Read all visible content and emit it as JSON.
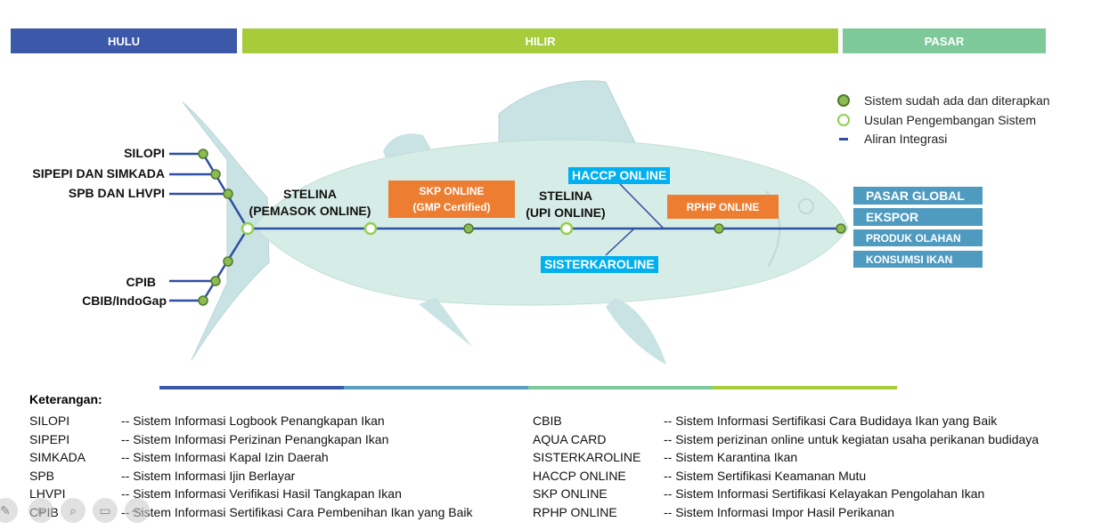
{
  "header": {
    "hulu": "HULU",
    "hilir": "HILIR",
    "pasar": "PASAR"
  },
  "colors": {
    "hulu": "#3c58a8",
    "hilir": "#a6cc3c",
    "pasar": "#7dc99a",
    "line": "#2f4fa2",
    "node_fill": "#8cbb53",
    "fish": "#d6ece6",
    "orange": "#ed7d31",
    "cyan": "#00b0f0",
    "market": "#4f9bc0"
  },
  "tail_labels": {
    "silopi": "SILOPI",
    "sipepi": "SIPEPI  DAN SIMKADA",
    "spb": "SPB DAN LHVPI",
    "cpib": "CPIB",
    "cbib": "CBIB/IndoGap"
  },
  "flow": {
    "stelina_pemasok_1": "STELINA",
    "stelina_pemasok_2": "(PEMASOK ONLINE)",
    "skp_1": "SKP ONLINE",
    "skp_2": "(GMP Certified)",
    "stelina_upi_1": "STELINA",
    "stelina_upi_2": "(UPI ONLINE)",
    "haccp": "HACCP ONLINE",
    "sisterkaroline": "SISTERKAROLINE",
    "rphp": "RPHP ONLINE"
  },
  "markets": [
    {
      "label": "PASAR GLOBAL"
    },
    {
      "label": "EKSPOR"
    },
    {
      "label": "PRODUK OLAHAN"
    },
    {
      "label": "KONSUMSI IKAN"
    }
  ],
  "legend": {
    "applied": "Sistem sudah ada dan diterapkan",
    "proposed": "Usulan Pengembangan Sistem",
    "integration": "Aliran Integrasi"
  },
  "keterangan": {
    "title": "Keterangan:",
    "left": [
      {
        "abbr": "SILOPI",
        "desc": "-- Sistem Informasi Logbook Penangkapan Ikan"
      },
      {
        "abbr": "SIPEPI",
        "desc": "-- Sistem Informasi Perizinan Penangkapan Ikan"
      },
      {
        "abbr": "SIMKADA",
        "desc": "-- Sistem Informasi Kapal Izin Daerah"
      },
      {
        "abbr": "SPB",
        "desc": "-- Sistem Informasi Ijin Berlayar"
      },
      {
        "abbr": "LHVPI",
        "desc": "-- Sistem Informasi Verifikasi Hasil Tangkapan Ikan"
      },
      {
        "abbr": "CPIB",
        "desc": "-- Sistem Informasi Sertifikasi Cara Pembenihan Ikan yang Baik"
      }
    ],
    "right": [
      {
        "abbr": "CBIB",
        "desc": "-- Sistem Informasi Sertifikasi Cara Budidaya Ikan yang Baik"
      },
      {
        "abbr": "AQUA CARD",
        "desc": "-- Sistem perizinan online untuk kegiatan usaha perikanan budidaya"
      },
      {
        "abbr": "SISTERKAROLINE",
        "desc": "-- Sistem Karantina Ikan"
      },
      {
        "abbr": "HACCP ONLINE",
        "desc": "-- Sistem Sertifikasi Keamanan Mutu"
      },
      {
        "abbr": "SKP ONLINE",
        "desc": "-- Sistem Informasi Sertifikasi Kelayakan Pengolahan Ikan"
      },
      {
        "abbr": "RPHP ONLINE",
        "desc": "-- Sistem Informasi Impor Hasil Perikanan"
      }
    ]
  },
  "toolbar": {
    "pen": "pen-icon",
    "menu": "menu-icon",
    "zoom": "zoom-icon",
    "slides": "slides-icon",
    "more": "more-icon"
  }
}
